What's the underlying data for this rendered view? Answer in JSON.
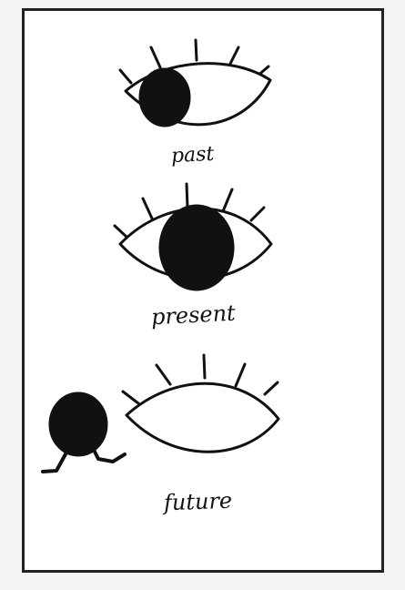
{
  "panels": [
    {
      "label": "past",
      "pupil_position": "left"
    },
    {
      "label": "present",
      "pupil_position": "center"
    },
    {
      "label": "future",
      "pupil_position": "outside-running"
    }
  ],
  "colors": {
    "ink": "#111111",
    "paper": "#ffffff",
    "background": "#f3f3f3",
    "border": "#222222"
  }
}
